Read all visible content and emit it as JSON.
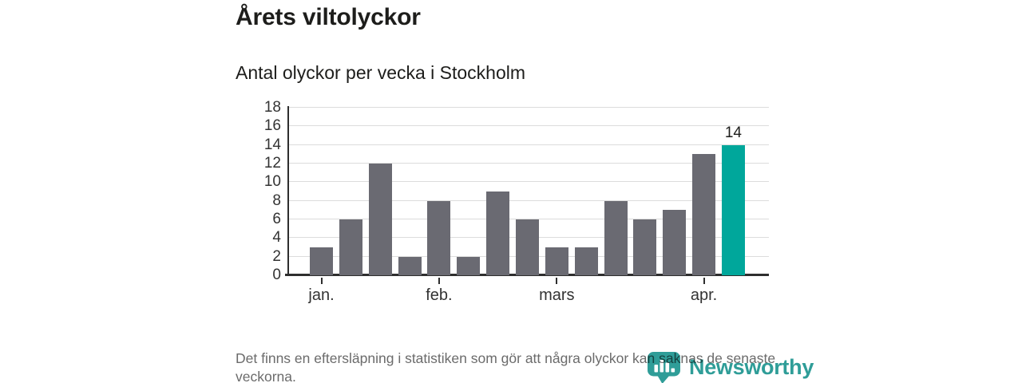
{
  "header": {
    "title": "Årets viltolyckor",
    "subtitle": "Antal olyckor per vecka i Stockholm"
  },
  "chart_data": {
    "type": "bar",
    "title": "Årets viltolyckor",
    "subtitle": "Antal olyckor per vecka i Stockholm",
    "values": [
      3,
      6,
      12,
      2,
      8,
      2,
      9,
      6,
      3,
      3,
      8,
      6,
      7,
      13,
      14
    ],
    "highlight_index": 14,
    "value_labels": [
      {
        "index": 14,
        "text": "14"
      }
    ],
    "ylim": [
      0,
      18
    ],
    "yticks": [
      0,
      2,
      4,
      6,
      8,
      10,
      12,
      14,
      16,
      18
    ],
    "xticks": [
      {
        "index": 0,
        "label": "jan."
      },
      {
        "index": 4,
        "label": "feb."
      },
      {
        "index": 8,
        "label": "mars"
      },
      {
        "index": 13,
        "label": "apr."
      }
    ],
    "grid": true,
    "legend": null,
    "colors": {
      "bar": "#6a6a72",
      "highlight": "#00a79b",
      "axis": "#2e2e2e",
      "gridline": "#dcdcdc"
    }
  },
  "footer": {
    "note": "Det finns en eftersläpning i statistiken som gör att några olyckor kan saknas de senaste veckorna."
  },
  "logo": {
    "text": "Newsworthy",
    "color": "#2f9d98"
  }
}
